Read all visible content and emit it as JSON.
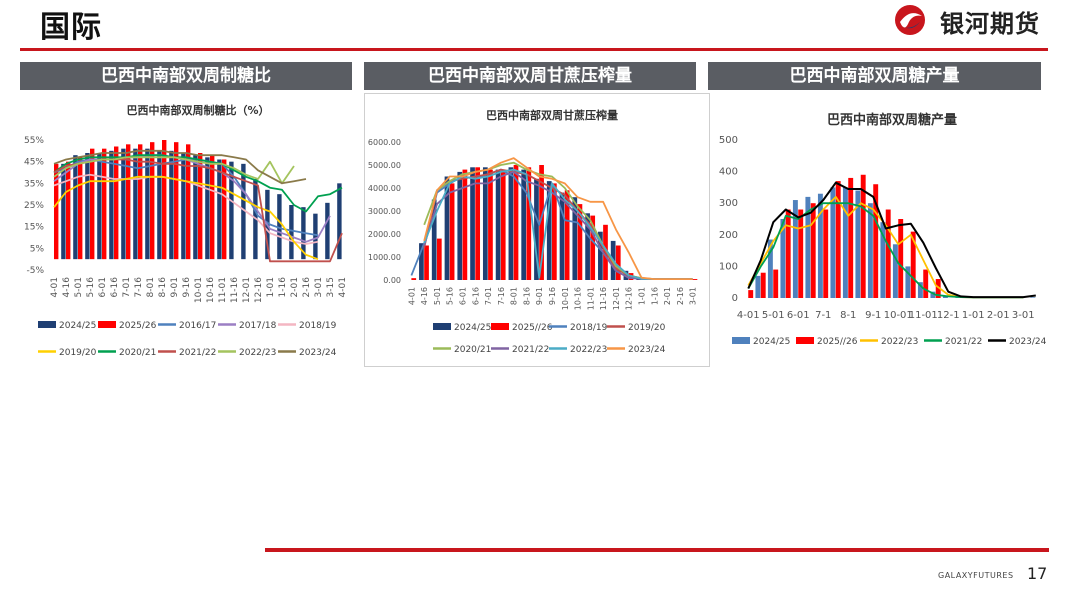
{
  "page": {
    "title": "国际",
    "logo_text": "银河期货",
    "footer_brand": "GALAXYFUTURES",
    "page_number": "17",
    "accent_color": "#c8161d",
    "header_color": "#5a5d63"
  },
  "panels": [
    {
      "header": "巴西中南部双周制糖比"
    },
    {
      "header": "巴西中南部双周甘蔗压榨量"
    },
    {
      "header": "巴西中南部双周糖产量"
    }
  ],
  "chart_data": [
    {
      "type": "bar",
      "title": "巴西中南部双周制糖比（%）",
      "categories": [
        "4-01",
        "4-16",
        "5-01",
        "5-16",
        "6-01",
        "6-16",
        "7-01",
        "7-16",
        "8-01",
        "8-16",
        "9-01",
        "9-16",
        "10-01",
        "10-16",
        "11-01",
        "11-16",
        "12-01",
        "12-16",
        "1-01",
        "1-16",
        "2-01",
        "2-16",
        "3-01",
        "3-15",
        "4-01"
      ],
      "y_ticks": [
        "55%",
        "45%",
        "35%",
        "25%",
        "15%",
        "5%",
        "-5%"
      ],
      "ylim": [
        -5,
        55
      ],
      "legend_position": "bottom",
      "bar_series": [
        {
          "name": "2024/25",
          "color": "#1f3f73",
          "values": [
            null,
            44,
            48,
            49,
            49,
            50,
            51,
            51,
            51,
            50,
            50,
            49,
            48,
            47,
            46,
            45,
            44,
            37,
            32,
            30,
            25,
            24,
            21,
            26,
            35
          ]
        },
        {
          "name": "2025/26",
          "color": "#ff0000",
          "values": [
            44,
            45,
            47,
            51,
            51,
            52,
            53,
            53,
            54,
            55,
            54,
            53,
            49,
            48,
            46,
            null,
            null,
            null,
            null,
            null,
            null,
            null,
            null,
            null,
            null
          ]
        }
      ],
      "line_series": [
        {
          "name": "2016/17",
          "color": "#4f81bd",
          "values": [
            40,
            42,
            45,
            46,
            45,
            44,
            43,
            42,
            43,
            44,
            45,
            46,
            46,
            45,
            44,
            38,
            30,
            20,
            16,
            14,
            13,
            12,
            11,
            null,
            null
          ]
        },
        {
          "name": "2017/18",
          "color": "#9b7fc4",
          "values": [
            36,
            40,
            44,
            46,
            46,
            46,
            47,
            47,
            48,
            48,
            47,
            46,
            44,
            42,
            40,
            36,
            30,
            22,
            14,
            12,
            10,
            8,
            10,
            20,
            null
          ]
        },
        {
          "name": "2018/19",
          "color": "#f4b6c2",
          "values": [
            34,
            36,
            38,
            39,
            38,
            37,
            37,
            37,
            38,
            38,
            37,
            36,
            34,
            32,
            30,
            26,
            22,
            18,
            12,
            10,
            8,
            7,
            8,
            null,
            null
          ]
        },
        {
          "name": "2019/20",
          "color": "#ffd000",
          "values": [
            24,
            31,
            34,
            36,
            36,
            36,
            37,
            38,
            38,
            38,
            37,
            36,
            35,
            34,
            33,
            30,
            27,
            24,
            22,
            16,
            8,
            2,
            0,
            null,
            null
          ]
        },
        {
          "name": "2020/21",
          "color": "#00a050",
          "values": [
            40,
            44,
            46,
            47,
            47,
            47,
            47,
            48,
            48,
            48,
            47,
            47,
            46,
            45,
            44,
            41,
            38,
            36,
            33,
            32,
            25,
            22,
            29,
            30,
            33
          ]
        },
        {
          "name": "2021/22",
          "color": "#c0504d",
          "values": [
            40,
            43,
            44,
            45,
            46,
            46,
            46,
            45,
            45,
            44,
            44,
            43,
            43,
            42,
            40,
            38,
            36,
            34,
            -1,
            -1,
            -1,
            -1,
            -1,
            -1,
            12
          ]
        },
        {
          "name": "2022/23",
          "color": "#a4c45e",
          "values": [
            38,
            42,
            44,
            45,
            46,
            46,
            47,
            47,
            47,
            47,
            47,
            46,
            45,
            44,
            44,
            42,
            39,
            37,
            45,
            35,
            43,
            null,
            null,
            null,
            null
          ]
        },
        {
          "name": "2023/24",
          "color": "#8a7a4a",
          "values": [
            44,
            46,
            47,
            48,
            49,
            49,
            49,
            50,
            50,
            50,
            49,
            49,
            48,
            48,
            48,
            47,
            46,
            41,
            38,
            35,
            36,
            37,
            null,
            null,
            null
          ]
        }
      ]
    },
    {
      "type": "bar",
      "title": "巴西中南部双周甘蔗压榨量",
      "categories": [
        "4-01",
        "4-16",
        "5-01",
        "5-16",
        "6-01",
        "6-16",
        "7-01",
        "7-16",
        "8-01",
        "8-16",
        "9-01",
        "9-16",
        "10-01",
        "10-16",
        "11-01",
        "11-16",
        "12-01",
        "12-16",
        "1-01",
        "1-16",
        "2-01",
        "2-16",
        "3-01"
      ],
      "y_ticks": [
        "6000.00",
        "5000.00",
        "4000.00",
        "3000.00",
        "2000.00",
        "1000.00",
        "0.00"
      ],
      "ylim": [
        0,
        6000
      ],
      "legend_position": "bottom",
      "bar_series": [
        {
          "name": "2024/25",
          "color": "#1f3f73",
          "values": [
            null,
            1600,
            3500,
            4500,
            4700,
            4900,
            4900,
            4800,
            4900,
            4800,
            4400,
            4300,
            3800,
            3600,
            2900,
            2100,
            1700,
            400,
            50,
            40,
            40,
            40,
            40
          ]
        },
        {
          "name": "2025//26",
          "color": "#ff0000",
          "values": [
            80,
            1500,
            1800,
            4200,
            4800,
            4900,
            4800,
            4700,
            5000,
            4900,
            5000,
            4200,
            3900,
            3300,
            2800,
            2400,
            1500,
            300,
            40,
            40,
            40,
            40,
            40
          ]
        }
      ],
      "line_series": [
        {
          "name": "2018/19",
          "color": "#4f81bd",
          "values": [
            200,
            1600,
            3800,
            4200,
            4500,
            4400,
            4600,
            4800,
            4500,
            3800,
            2400,
            4200,
            2600,
            2500,
            1800,
            1200,
            400,
            100,
            50,
            40,
            40,
            40,
            40
          ]
        },
        {
          "name": "2019/20",
          "color": "#c0504d",
          "values": [
            null,
            1400,
            3900,
            4300,
            4400,
            4500,
            4600,
            4800,
            4700,
            4600,
            4300,
            4000,
            3700,
            3000,
            2400,
            1400,
            500,
            200,
            80,
            40,
            40,
            40,
            40
          ]
        },
        {
          "name": "2020/21",
          "color": "#9bbb59",
          "values": [
            null,
            2400,
            3900,
            4300,
            4600,
            4700,
            4800,
            5000,
            5100,
            4800,
            4600,
            4500,
            4000,
            3200,
            2600,
            1500,
            600,
            200,
            80,
            40,
            40,
            40,
            40
          ]
        },
        {
          "name": "2021/22",
          "color": "#8064a2",
          "values": [
            null,
            1500,
            3300,
            3800,
            4000,
            4200,
            4200,
            4500,
            4700,
            4300,
            4100,
            3800,
            3400,
            2800,
            2200,
            1200,
            400,
            100,
            40,
            40,
            40,
            40,
            40
          ]
        },
        {
          "name": "2022/23",
          "color": "#4bacc6",
          "values": [
            null,
            1600,
            3000,
            4200,
            4500,
            4400,
            4500,
            4700,
            4800,
            4600,
            100,
            4200,
            3500,
            3000,
            2300,
            1500,
            700,
            200,
            50,
            40,
            40,
            40,
            40
          ]
        },
        {
          "name": "2023/24",
          "color": "#f79646",
          "values": [
            null,
            1700,
            3900,
            4500,
            4500,
            4700,
            4800,
            5100,
            5300,
            4900,
            4500,
            4400,
            4200,
            3600,
            3400,
            3400,
            2200,
            1200,
            100,
            40,
            40,
            40,
            40
          ]
        }
      ]
    },
    {
      "type": "bar",
      "title": "巴西中南部双周糖产量",
      "categories": [
        "4-01",
        "5-01",
        "6-01",
        "7-1",
        "8-1",
        "9-1",
        "10-01",
        "11-01",
        "12-1",
        "1-01",
        "2-01",
        "3-01"
      ],
      "x_slots": 24,
      "y_ticks": [
        "500",
        "400",
        "300",
        "200",
        "100",
        "0"
      ],
      "ylim": [
        0,
        500
      ],
      "legend_position": "bottom",
      "bar_series": [
        {
          "name": "2024/25",
          "color": "#4f81bd",
          "values": [
            null,
            70,
            185,
            250,
            310,
            320,
            330,
            350,
            350,
            340,
            300,
            240,
            170,
            100,
            50,
            20,
            5,
            3,
            2,
            2,
            2,
            2,
            2,
            2
          ]
        },
        {
          "name": "2025//26",
          "color": "#ff0000",
          "values": [
            25,
            80,
            90,
            280,
            280,
            300,
            280,
            370,
            380,
            390,
            360,
            280,
            250,
            210,
            90,
            60,
            null,
            null,
            null,
            null,
            null,
            null,
            null,
            null
          ]
        }
      ],
      "line_series": [
        {
          "name": "2022/23",
          "color": "#ffc000",
          "values": [
            40,
            110,
            180,
            230,
            220,
            230,
            280,
            320,
            260,
            300,
            280,
            230,
            170,
            200,
            120,
            40,
            10,
            3,
            2,
            2,
            2,
            2,
            2,
            null
          ]
        },
        {
          "name": "2021/22",
          "color": "#00a050",
          "values": [
            30,
            100,
            160,
            260,
            250,
            280,
            300,
            300,
            300,
            290,
            260,
            180,
            110,
            70,
            30,
            10,
            5,
            3,
            2,
            2,
            2,
            2,
            2,
            null
          ]
        },
        {
          "name": "2023/24",
          "color": "#000000",
          "values": [
            30,
            120,
            240,
            280,
            255,
            270,
            310,
            365,
            345,
            345,
            320,
            220,
            230,
            235,
            175,
            95,
            20,
            5,
            3,
            3,
            3,
            3,
            3,
            8
          ]
        }
      ]
    }
  ]
}
